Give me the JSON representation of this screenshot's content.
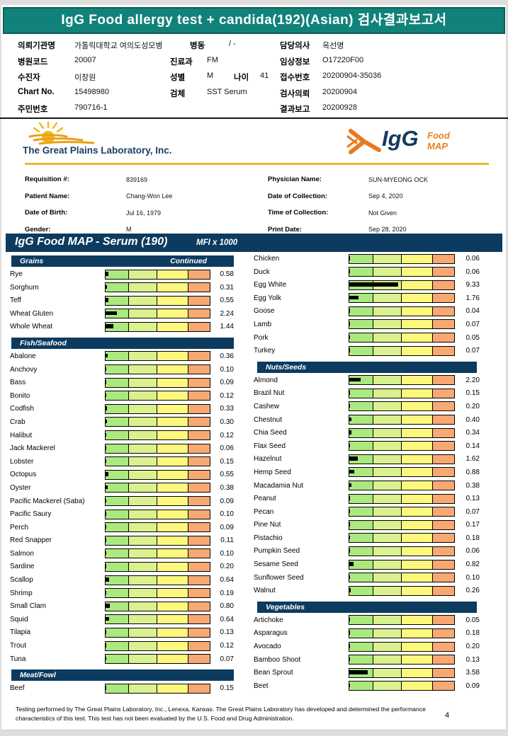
{
  "banner": {
    "title": "IgG Food allergy test + candida(192)(Asian) 검사결과보고서"
  },
  "patient_info": {
    "rows": [
      {
        "fields": [
          {
            "slot": "c1",
            "label": "의뢰기관명",
            "value": "가톨릭대학교 여의도성모병"
          },
          {
            "slot": "c2w",
            "label": "병동",
            "value": "/ -"
          },
          {
            "slot": "c3",
            "label": "담당의사",
            "value": "옥선명"
          }
        ]
      },
      {
        "fields": [
          {
            "slot": "c1",
            "label": "병원코드",
            "value": "20007"
          },
          {
            "slot": "c2",
            "label": "진료과",
            "value": "FM"
          },
          {
            "slot": "c3",
            "label": "임상정보",
            "value": "O17220F00"
          }
        ]
      },
      {
        "fields": [
          {
            "slot": "c1",
            "label": "수진자",
            "value": "이창원"
          },
          {
            "slot": "c2",
            "label": "성별",
            "value": "M"
          },
          {
            "slot": "c2b",
            "label": "나이",
            "value": "41"
          },
          {
            "slot": "c3",
            "label": "접수번호",
            "value": "20200904-35036"
          }
        ]
      },
      {
        "fields": [
          {
            "slot": "c1",
            "label": "Chart No.",
            "value": "15498980"
          },
          {
            "slot": "c2",
            "label": "검체",
            "value": "SST Serum"
          },
          {
            "slot": "c3",
            "label": "검사의뢰",
            "value": "20200904"
          }
        ]
      },
      {
        "fields": [
          {
            "slot": "c1",
            "label": "주민번호",
            "value": "790716-1"
          },
          {
            "slot": "c3",
            "label": "결과보고",
            "value": "20200928"
          }
        ]
      }
    ]
  },
  "lab": {
    "name": "The Great Plains Laboratory, Inc.",
    "logo_igg": "IgG",
    "logo_food": "Food",
    "logo_map": "MAP"
  },
  "requisition": {
    "left": [
      {
        "label": "Requisition #:",
        "value": "839169"
      },
      {
        "label": "Patient Name:",
        "value": "Chang-Won Lee"
      },
      {
        "label": "Date of Birth:",
        "value": "Jul 16, 1979"
      },
      {
        "label": "Gender:",
        "value": "M"
      }
    ],
    "right": [
      {
        "label": "Physician Name:",
        "value": "SUN-MYEONG OCK"
      },
      {
        "label": "Date of Collection:",
        "value": "Sep 4, 2020"
      },
      {
        "label": "Time of Collection:",
        "value": "Not Given"
      },
      {
        "label": "Print Date:",
        "value": "Sep 28, 2020"
      }
    ]
  },
  "chart_data": {
    "type": "bar",
    "title": "IgG Food MAP - Serum (190)",
    "unit_label": "MFI x 1000",
    "scale_max": 20,
    "zone_fractions": [
      0.221,
      0.269,
      0.302,
      0.208
    ],
    "zone_colors": [
      "#abe97e",
      "#d9f18f",
      "#fcf87e",
      "#f8a872"
    ],
    "value_bar_color": "#000000",
    "continued_label": "Continued",
    "sections": [
      {
        "title": "Grains",
        "continued": true,
        "column": "left",
        "items": [
          {
            "name": "Rye",
            "value": "0.58"
          },
          {
            "name": "Sorghum",
            "value": "0.31"
          },
          {
            "name": "Teff",
            "value": "0.55"
          },
          {
            "name": "Wheat Gluten",
            "value": "2.24"
          },
          {
            "name": "Whole Wheat",
            "value": "1.44"
          }
        ]
      },
      {
        "title": "Fish/Seafood",
        "continued": false,
        "column": "left",
        "items": [
          {
            "name": "Abalone",
            "value": "0.36"
          },
          {
            "name": "Anchovy",
            "value": "0.10"
          },
          {
            "name": "Bass",
            "value": "0.09"
          },
          {
            "name": "Bonito",
            "value": "0.12"
          },
          {
            "name": "Codfish",
            "value": "0.33"
          },
          {
            "name": "Crab",
            "value": "0.30"
          },
          {
            "name": "Halibut",
            "value": "0.12"
          },
          {
            "name": "Jack Mackerel",
            "value": "0.06"
          },
          {
            "name": "Lobster",
            "value": "0.15"
          },
          {
            "name": "Octopus",
            "value": "0.55"
          },
          {
            "name": "Oyster",
            "value": "0.38"
          },
          {
            "name": "Pacific Mackerel (Saba)",
            "value": "0.09"
          },
          {
            "name": "Pacific Saury",
            "value": "0.10"
          },
          {
            "name": "Perch",
            "value": "0.09"
          },
          {
            "name": "Red Snapper",
            "value": "0.11"
          },
          {
            "name": "Salmon",
            "value": "0.10"
          },
          {
            "name": "Sardine",
            "value": "0.20"
          },
          {
            "name": "Scallop",
            "value": "0.64"
          },
          {
            "name": "Shrimp",
            "value": "0.19"
          },
          {
            "name": "Small Clam",
            "value": "0.80"
          },
          {
            "name": "Squid",
            "value": "0.64"
          },
          {
            "name": "Tilapia",
            "value": "0.13"
          },
          {
            "name": "Trout",
            "value": "0.12"
          },
          {
            "name": "Tuna",
            "value": "0.07"
          }
        ]
      },
      {
        "title": "Meat/Fowl",
        "continued": false,
        "column": "left",
        "items": [
          {
            "name": "Beef",
            "value": "0.15"
          }
        ]
      },
      {
        "title": null,
        "continued": false,
        "column": "right",
        "items": [
          {
            "name": "Chicken",
            "value": "0.06"
          },
          {
            "name": "Duck",
            "value": "0.06"
          },
          {
            "name": "Egg White",
            "value": "9.33"
          },
          {
            "name": "Egg Yolk",
            "value": "1.76"
          },
          {
            "name": "Goose",
            "value": "0.04"
          },
          {
            "name": "Lamb",
            "value": "0.07"
          },
          {
            "name": "Pork",
            "value": "0.05"
          },
          {
            "name": "Turkey",
            "value": "0.07"
          }
        ]
      },
      {
        "title": "Nuts/Seeds",
        "continued": false,
        "column": "right",
        "items": [
          {
            "name": "Almond",
            "value": "2.20"
          },
          {
            "name": "Brazil Nut",
            "value": "0.15"
          },
          {
            "name": "Cashew",
            "value": "0.20"
          },
          {
            "name": "Chestnut",
            "value": "0.40"
          },
          {
            "name": "Chia Seed",
            "value": "0.34"
          },
          {
            "name": "Flax Seed",
            "value": "0.14"
          },
          {
            "name": "Hazelnut",
            "value": "1.62"
          },
          {
            "name": "Hemp Seed",
            "value": "0.88"
          },
          {
            "name": "Macadamia Nut",
            "value": "0.38"
          },
          {
            "name": "Peanut",
            "value": "0.13"
          },
          {
            "name": "Pecan",
            "value": "0.07"
          },
          {
            "name": "Pine Nut",
            "value": "0.17"
          },
          {
            "name": "Pistachio",
            "value": "0.18"
          },
          {
            "name": "Pumpkin Seed",
            "value": "0.06"
          },
          {
            "name": "Sesame Seed",
            "value": "0.82"
          },
          {
            "name": "Sunflower Seed",
            "value": "0.10"
          },
          {
            "name": "Walnut",
            "value": "0.26"
          }
        ]
      },
      {
        "title": "Vegetables",
        "continued": false,
        "column": "right",
        "items": [
          {
            "name": "Artichoke",
            "value": "0.05"
          },
          {
            "name": "Asparagus",
            "value": "0.18"
          },
          {
            "name": "Avocado",
            "value": "0.20"
          },
          {
            "name": "Bamboo Shoot",
            "value": "0.13"
          },
          {
            "name": "Bean Sprout",
            "value": "3.58"
          },
          {
            "name": "Beet",
            "value": "0.09"
          }
        ]
      }
    ]
  },
  "footer": {
    "disclaimer": "Testing performed by The Great Plains Laboratory, Inc., Lenexa, Kansas.  The Great Plains Laboratory has developed and determined the performance characteristics of this test.  This test has not been evaluated by the U.S. Food and Drug Administration.",
    "page_number": "4"
  },
  "colors": {
    "banner_teal": "#11827a",
    "section_navy": "#0d3b5f",
    "logo_orange": "#e8821e",
    "gold_rule": "#eeb81f"
  }
}
